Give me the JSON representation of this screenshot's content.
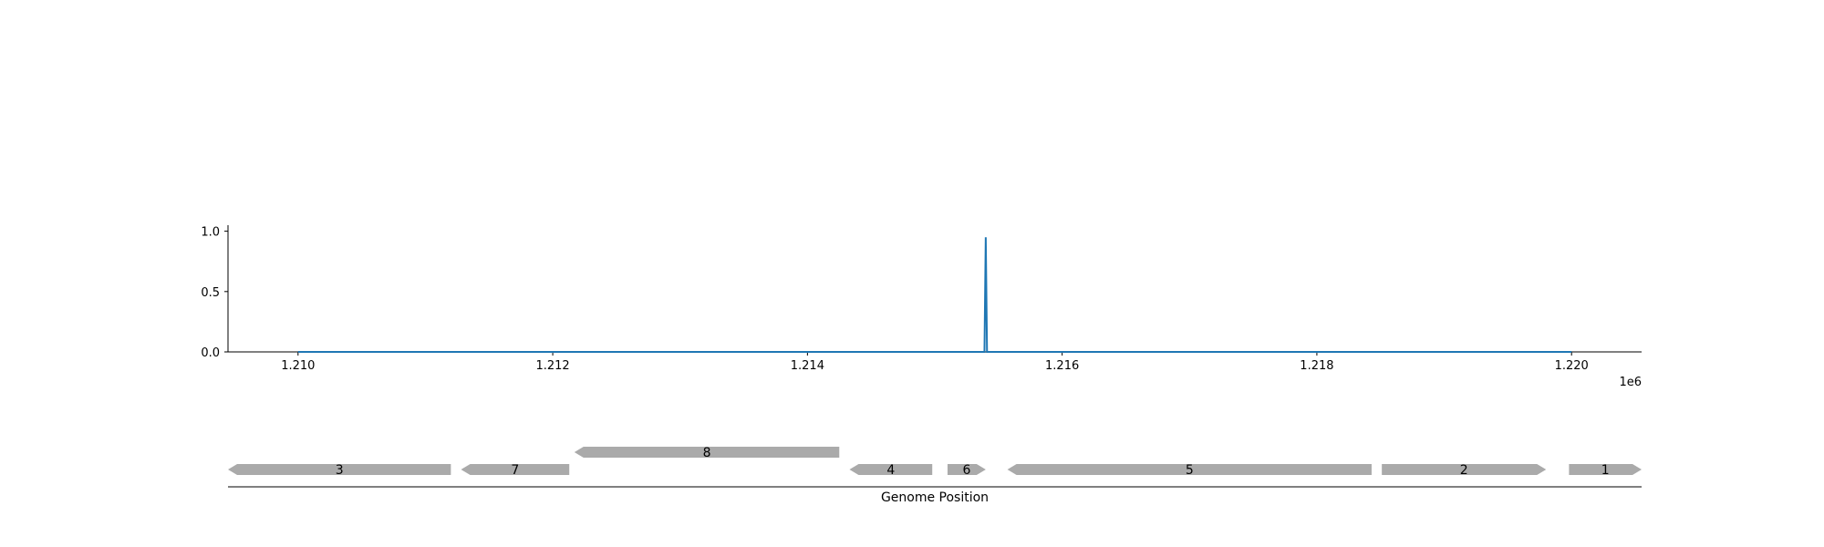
{
  "chart_data": [
    {
      "type": "line",
      "title": "",
      "xlabel": "",
      "ylabel": "",
      "x_offset_label": "1e6",
      "xlim": [
        1.20945,
        1.22055
      ],
      "ylim": [
        0.0,
        1.05
      ],
      "x_ticks": [
        1.21,
        1.212,
        1.214,
        1.216,
        1.218,
        1.22
      ],
      "x_tick_labels": [
        "1.210",
        "1.212",
        "1.214",
        "1.216",
        "1.218",
        "1.220"
      ],
      "y_ticks": [
        0.0,
        0.5,
        1.0
      ],
      "y_tick_labels": [
        "0.0",
        "0.5",
        "1.0"
      ],
      "grid": false,
      "color": "#1f77b4",
      "series": [
        {
          "x": [
            1.21,
            1.21539,
            1.2154,
            1.21541,
            1.22
          ],
          "values": [
            0.0,
            0.0,
            0.95,
            0.0,
            0.0
          ]
        }
      ]
    },
    {
      "type": "gene-track",
      "xlabel": "Genome Position",
      "xlim": [
        1.20945,
        1.22055
      ],
      "color": "#aaaaaa",
      "features": [
        {
          "label": "3",
          "start": 1.20945,
          "end": 1.2112,
          "strand": "-",
          "row": 0
        },
        {
          "label": "7",
          "start": 1.21128,
          "end": 1.21213,
          "strand": "-",
          "row": 0
        },
        {
          "label": "8",
          "start": 1.21217,
          "end": 1.21425,
          "strand": "-",
          "row": 1
        },
        {
          "label": "4",
          "start": 1.21433,
          "end": 1.21498,
          "strand": "-",
          "row": 0
        },
        {
          "label": "6",
          "start": 1.2151,
          "end": 1.2154,
          "strand": "+",
          "row": 0
        },
        {
          "label": "5",
          "start": 1.21557,
          "end": 1.21843,
          "strand": "-",
          "row": 0
        },
        {
          "label": "2",
          "start": 1.21851,
          "end": 1.2198,
          "strand": "+",
          "row": 0
        },
        {
          "label": "1",
          "start": 1.21998,
          "end": 1.22055,
          "strand": "+",
          "row": 0
        }
      ]
    }
  ]
}
